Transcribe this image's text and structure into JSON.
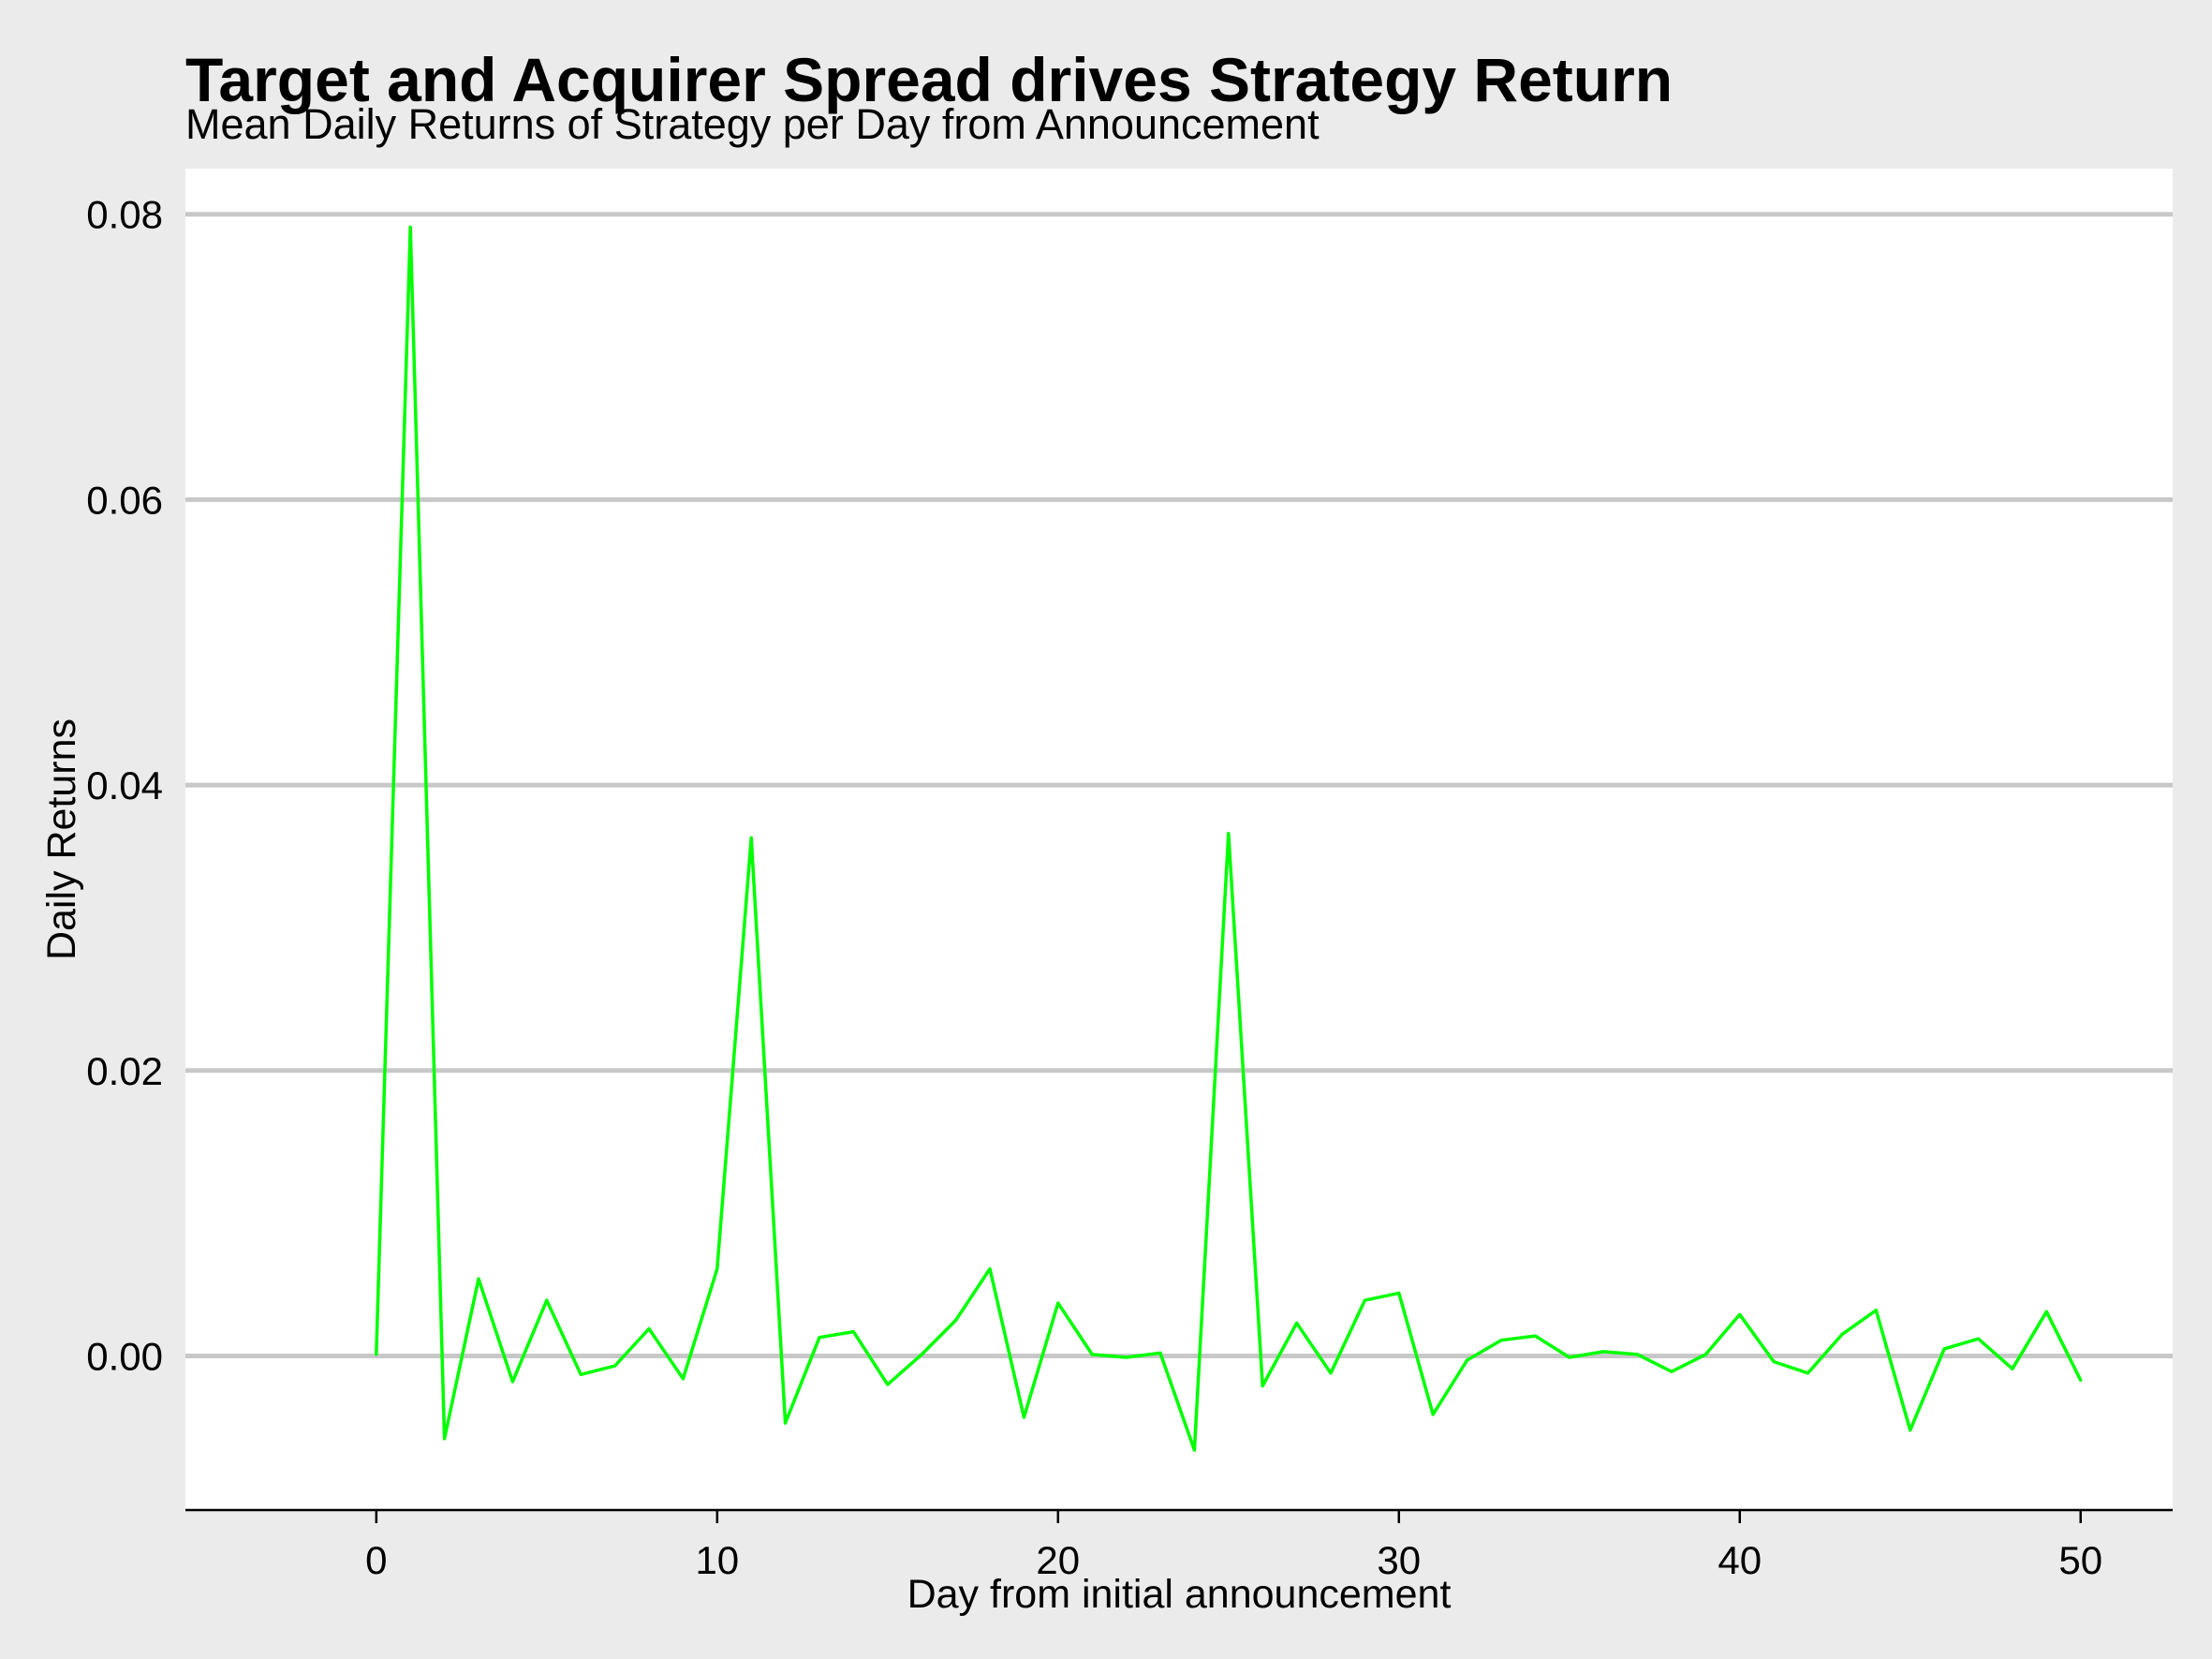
{
  "chart_data": {
    "type": "line",
    "title": "Target and Acquirer Spread drives Strategy Return",
    "subtitle": "Mean Daily Returns of Strategy per Day from Announcement",
    "xlabel": "Day from initial announcement",
    "ylabel": "Daily Returns",
    "xlim": [
      -5.6,
      52.7
    ],
    "ylim": [
      -0.0108,
      0.0832
    ],
    "x_ticks": [
      0,
      10,
      20,
      30,
      40,
      50
    ],
    "x_tick_labels": [
      "0",
      "10",
      "20",
      "30",
      "40",
      "50"
    ],
    "y_ticks": [
      0.0,
      0.02,
      0.04,
      0.06,
      0.08
    ],
    "y_tick_labels": [
      "0.00",
      "0.02",
      "0.04",
      "0.06",
      "0.08"
    ],
    "grid": "horizontal-major",
    "series": [
      {
        "color": "#00ff00",
        "x": [
          0,
          1,
          2,
          3,
          4,
          5,
          6,
          7,
          8,
          9,
          10,
          11,
          12,
          13,
          14,
          15,
          16,
          17,
          18,
          19,
          20,
          21,
          22,
          23,
          24,
          25,
          26,
          27,
          28,
          29,
          30,
          31,
          32,
          33,
          34,
          35,
          36,
          37,
          38,
          39,
          40,
          41,
          42,
          43,
          44,
          45,
          46,
          47,
          48,
          49,
          50
        ],
        "y": [
          0.0001,
          0.0791,
          -0.0058,
          0.0054,
          -0.0018,
          0.0039,
          -0.0013,
          -0.0007,
          0.0019,
          -0.0016,
          0.0061,
          0.0363,
          -0.0047,
          0.0013,
          0.0017,
          -0.002,
          0.0001,
          0.0025,
          0.0061,
          -0.0043,
          0.0037,
          0.0001,
          -0.0001,
          0.0002,
          -0.0066,
          0.0366,
          -0.0021,
          0.0023,
          -0.0012,
          0.0039,
          0.0044,
          -0.0041,
          -0.0003,
          0.0011,
          0.0014,
          -0.0001,
          0.0003,
          0.0001,
          -0.0011,
          0.0001,
          0.0029,
          -0.0004,
          -0.0012,
          0.0015,
          0.0032,
          -0.0052,
          0.0005,
          0.0012,
          -0.0009,
          0.0031,
          -0.0017
        ]
      }
    ]
  },
  "colors": {
    "page_background": "#ebebeb",
    "plot_background": "#ffffff",
    "gridline": "#c8c8c8",
    "axis_line": "#000000",
    "series_line": "#00ff00"
  }
}
